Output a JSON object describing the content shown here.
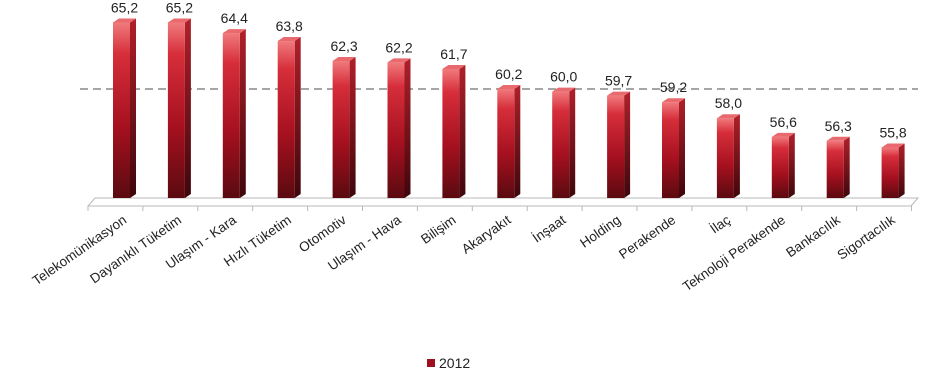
{
  "chart_data": {
    "type": "bar",
    "categories": [
      "Telekomünikasyon",
      "Dayanıklı Tüketim",
      "Ulaşım - Kara",
      "Hızlı Tüketim",
      "Otomotiv",
      "Ulaşım - Hava",
      "Bilişim",
      "Akaryakıt",
      "İnşaat",
      "Holding",
      "Perakende",
      "İlaç",
      "Teknoloji Perakende",
      "Bankacılık",
      "Sigortacılık"
    ],
    "value_labels": [
      "65,2",
      "65,2",
      "64,4",
      "63,8",
      "62,3",
      "62,2",
      "61,7",
      "60,2",
      "60,0",
      "59,7",
      "59,2",
      "58,0",
      "56,6",
      "56,3",
      "55,8"
    ],
    "series": [
      {
        "name": "2012",
        "values": [
          65.2,
          65.2,
          64.4,
          63.8,
          62.3,
          62.2,
          61.7,
          60.2,
          60.0,
          59.7,
          59.2,
          58.0,
          56.6,
          56.3,
          55.8
        ]
      }
    ],
    "reference_line": 60.2,
    "ylim": [
      52,
      66
    ],
    "colors": {
      "bar_top": "#f07a7c",
      "bar_mid": "#c8202c",
      "bar_bottom": "#5a0a10",
      "bar_side": "#7a0c16",
      "bar_cap": "#e86a6e",
      "refline": "#a6a6a6"
    },
    "legend": {
      "position": "bottom"
    },
    "grid": false
  }
}
